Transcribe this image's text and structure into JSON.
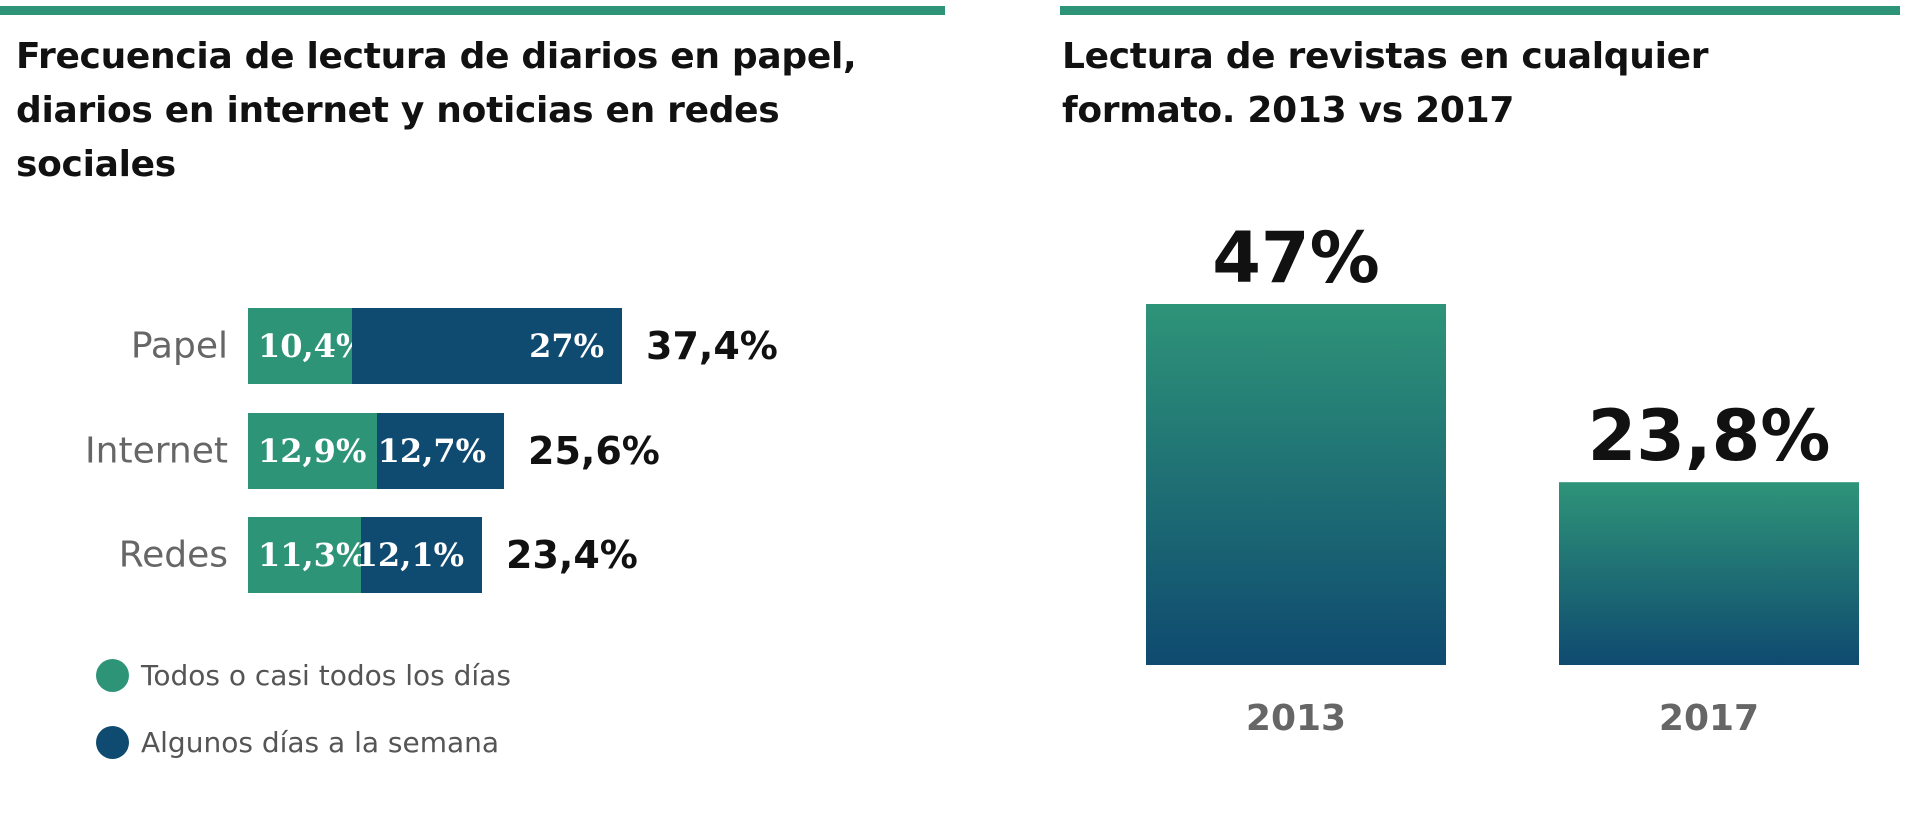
{
  "colors": {
    "green": "#2e9478",
    "navy": "#0f4a70",
    "accent_rule": "#2e9478",
    "text_dark": "#111111",
    "text_gray": "#666666"
  },
  "chart_data": [
    {
      "type": "bar",
      "orientation": "horizontal",
      "stacked": true,
      "title": "Frecuencia de lectura de diarios en papel, diarios en internet y noticias en redes sociales",
      "categories": [
        "Papel",
        "Internet",
        "Redes"
      ],
      "series": [
        {
          "name": "Todos o casi todos los días",
          "color": "#2e9478",
          "values": [
            10.4,
            12.9,
            11.3
          ],
          "labels": [
            "10,4%",
            "12,9%",
            "11,3%"
          ]
        },
        {
          "name": "Algunos días a la semana",
          "color": "#0f4a70",
          "values": [
            27,
            12.7,
            12.1
          ],
          "labels": [
            "27%",
            "12,7%",
            "12,1%"
          ]
        }
      ],
      "totals": [
        37.4,
        25.6,
        23.4
      ],
      "total_labels": [
        "37,4%",
        "25,6%",
        "23,4%"
      ],
      "legend": "bottom-left",
      "grid": false
    },
    {
      "type": "bar",
      "orientation": "vertical",
      "title": "Lectura de revistas en cualquier formato. 2013 vs 2017",
      "categories": [
        "2013",
        "2017"
      ],
      "values": [
        47,
        23.8
      ],
      "value_labels": [
        "47%",
        "23,8%"
      ],
      "gradient": [
        "#2e9478",
        "#0f4a70"
      ],
      "ylim": [
        0,
        47
      ],
      "grid": false
    }
  ]
}
